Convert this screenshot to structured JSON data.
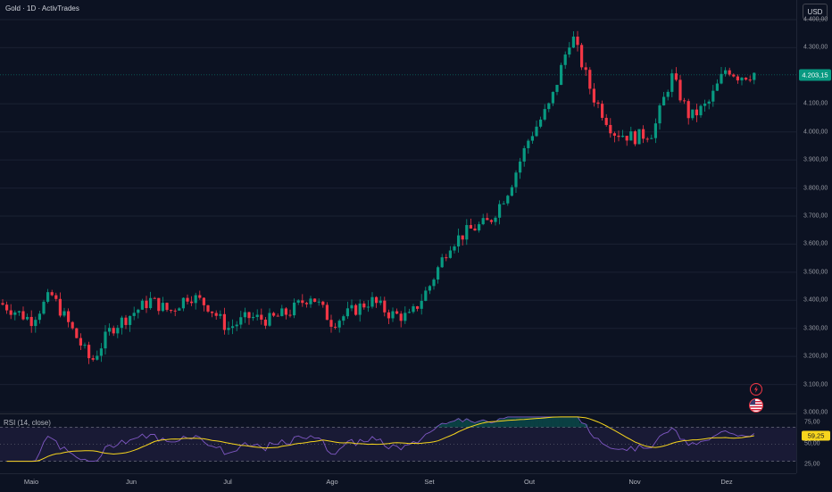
{
  "symbol_title": "Gold · 1D · ActivTrades",
  "currency_button": "USD",
  "current_price": "4.203,15",
  "price_ticks": [
    {
      "label": "4.400,00",
      "value": 4400
    },
    {
      "label": "4.300,00",
      "value": 4300
    },
    {
      "label": "4.100,00",
      "value": 4100
    },
    {
      "label": "4.000,00",
      "value": 4000
    },
    {
      "label": "3.900,00",
      "value": 3900
    },
    {
      "label": "3.800,00",
      "value": 3800
    },
    {
      "label": "3.700,00",
      "value": 3700
    },
    {
      "label": "3.600,00",
      "value": 3600
    },
    {
      "label": "3.500,00",
      "value": 3500
    },
    {
      "label": "3.400,00",
      "value": 3400
    },
    {
      "label": "3.300,00",
      "value": 3300
    },
    {
      "label": "3.200,00",
      "value": 3200
    },
    {
      "label": "3.100,00",
      "value": 3100
    },
    {
      "label": "3.000,00",
      "value": 3000
    }
  ],
  "rsi": {
    "title": "RSI (14, close)",
    "current": "59,25",
    "ticks": [
      {
        "label": "75,00",
        "value": 75
      },
      {
        "label": "50,00",
        "value": 50
      },
      {
        "label": "25,00",
        "value": 25
      }
    ]
  },
  "months": [
    "Maio",
    "Jun",
    "Jul",
    "Ago",
    "Set",
    "Out",
    "Nov",
    "Dez"
  ],
  "colors": {
    "up": "#089981",
    "down": "#f23645",
    "rsi_line": "#7e57c2",
    "rsi_ma": "#f7d51d",
    "background": "#0c1222"
  },
  "icons": [
    "lightning-event-icon",
    "us-flag-event-icon"
  ],
  "chart_data": {
    "type": "candlestick",
    "y_range": [
      3000,
      4470
    ],
    "x_labels": [
      "Maio",
      "Jun",
      "Jul",
      "Ago",
      "Set",
      "Out",
      "Nov",
      "Dez"
    ],
    "close_path": [
      [
        "Maio",
        3330
      ],
      [
        "Maio",
        3420
      ],
      [
        "Maio",
        3300
      ],
      [
        "Maio",
        3180
      ],
      [
        "Maio",
        3300
      ],
      [
        "Jun",
        3350
      ],
      [
        "Jun",
        3400
      ],
      [
        "Jun",
        3360
      ],
      [
        "Jun",
        3420
      ],
      [
        "Jun",
        3380
      ],
      [
        "Jul",
        3300
      ],
      [
        "Jul",
        3340
      ],
      [
        "Jul",
        3330
      ],
      [
        "Jul",
        3360
      ],
      [
        "Jul",
        3420
      ],
      [
        "Ago",
        3320
      ],
      [
        "Ago",
        3360
      ],
      [
        "Ago",
        3400
      ],
      [
        "Ago",
        3350
      ],
      [
        "Ago",
        3340
      ],
      [
        "Set",
        3450
      ],
      [
        "Set",
        3600
      ],
      [
        "Set",
        3650
      ],
      [
        "Set",
        3680
      ],
      [
        "Set",
        3800
      ],
      [
        "Out",
        3980
      ],
      [
        "Out",
        4100
      ],
      [
        "Out",
        4350
      ],
      [
        "Out",
        4130
      ],
      [
        "Out",
        4000
      ],
      [
        "Nov",
        3980
      ],
      [
        "Nov",
        4000
      ],
      [
        "Nov",
        4200
      ],
      [
        "Nov",
        4050
      ],
      [
        "Nov",
        4100
      ],
      [
        "Dez",
        4230
      ],
      [
        "Dez",
        4200
      ],
      [
        "Dez",
        4203.15
      ]
    ],
    "rsi_range": [
      15,
      85
    ]
  }
}
